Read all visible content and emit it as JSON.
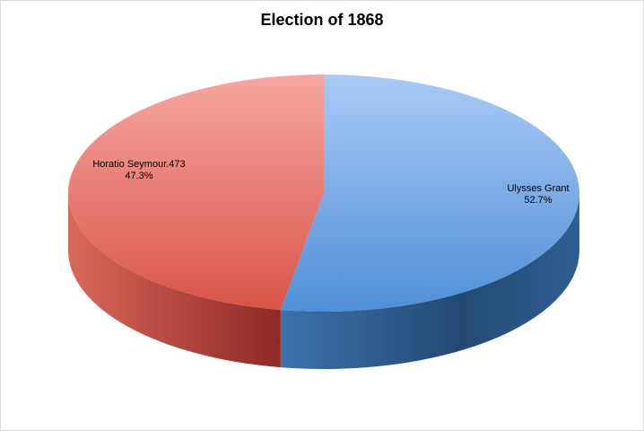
{
  "chart_data": {
    "type": "pie",
    "title": "Election of 1868",
    "slices": [
      {
        "label": "Ulysses Grant",
        "value": 52.7,
        "percent_text": "52.7%",
        "color": "#5B9BE0"
      },
      {
        "label": "Horatio Seymour.473",
        "value": 47.3,
        "percent_text": "47.3%",
        "color": "#E96A5C"
      }
    ],
    "three_d": true,
    "legend": "none"
  }
}
